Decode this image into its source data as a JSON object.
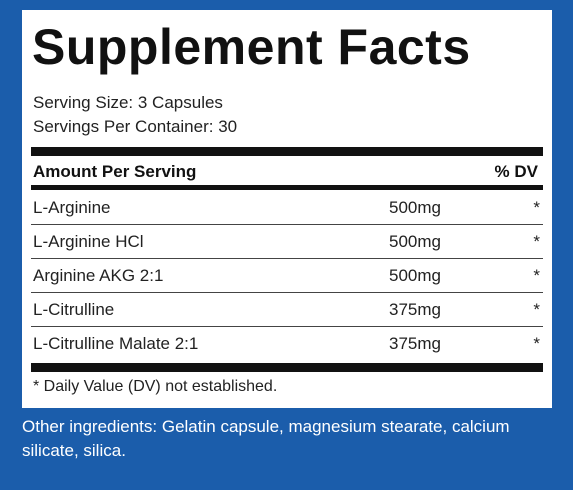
{
  "header": {
    "title": "Supplement Facts",
    "serving_size": "Serving Size: 3 Capsules",
    "servings_per_container": "Servings Per Container: 30"
  },
  "table": {
    "columns": [
      "Amount Per Serving",
      "% DV"
    ],
    "rows": [
      [
        "L-Arginine",
        "500mg",
        "*"
      ],
      [
        "L-Arginine HCl",
        "500mg",
        "*"
      ],
      [
        "Arginine AKG 2:1",
        "500mg",
        "*"
      ],
      [
        "L-Citrulline",
        "375mg",
        "*"
      ],
      [
        "L-Citrulline Malate 2:1",
        "375mg",
        "*"
      ]
    ]
  },
  "footnote": "* Daily Value (DV) not established.",
  "other_ingredients": "Other ingredients: Gelatin capsule, magnesium stearate, calcium silicate, silica."
}
